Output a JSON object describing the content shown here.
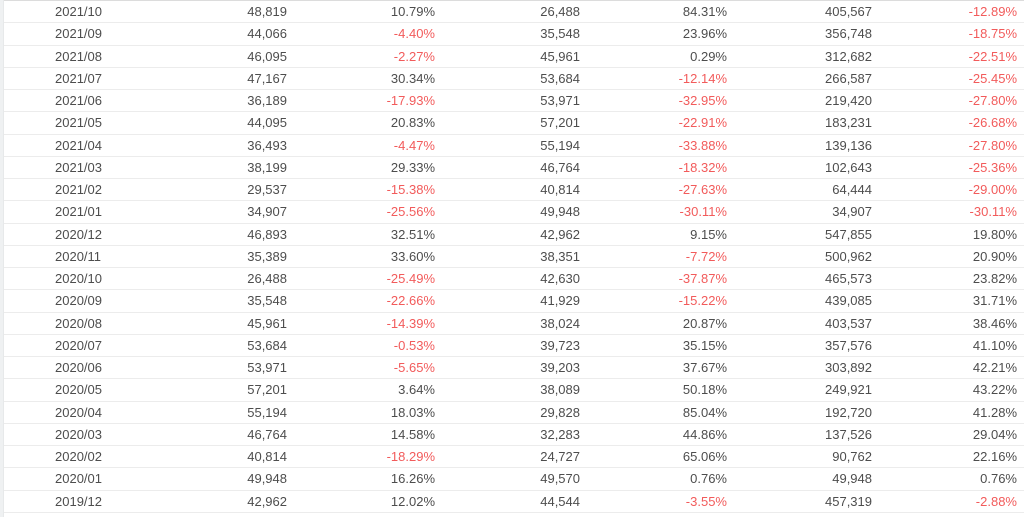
{
  "colors": {
    "background": "#ffffff",
    "text": "#4d4d4d",
    "negative": "#f25b5b",
    "row_border": "#ececec",
    "top_border": "#dcdcdc",
    "left_strip": "#eff1f2"
  },
  "chart_data": {
    "type": "table",
    "columns": [
      "month",
      "value_1",
      "pct_1",
      "value_2",
      "pct_2",
      "value_3",
      "pct_3"
    ],
    "layout": {
      "header_visible": false,
      "grid": "horizontal-row-separators",
      "negative_values_red": true
    },
    "rows": [
      [
        "2021/10",
        "48,819",
        "10.79%",
        "26,488",
        "84.31%",
        "405,567",
        "-12.89%"
      ],
      [
        "2021/09",
        "44,066",
        "-4.40%",
        "35,548",
        "23.96%",
        "356,748",
        "-18.75%"
      ],
      [
        "2021/08",
        "46,095",
        "-2.27%",
        "45,961",
        "0.29%",
        "312,682",
        "-22.51%"
      ],
      [
        "2021/07",
        "47,167",
        "30.34%",
        "53,684",
        "-12.14%",
        "266,587",
        "-25.45%"
      ],
      [
        "2021/06",
        "36,189",
        "-17.93%",
        "53,971",
        "-32.95%",
        "219,420",
        "-27.80%"
      ],
      [
        "2021/05",
        "44,095",
        "20.83%",
        "57,201",
        "-22.91%",
        "183,231",
        "-26.68%"
      ],
      [
        "2021/04",
        "36,493",
        "-4.47%",
        "55,194",
        "-33.88%",
        "139,136",
        "-27.80%"
      ],
      [
        "2021/03",
        "38,199",
        "29.33%",
        "46,764",
        "-18.32%",
        "102,643",
        "-25.36%"
      ],
      [
        "2021/02",
        "29,537",
        "-15.38%",
        "40,814",
        "-27.63%",
        "64,444",
        "-29.00%"
      ],
      [
        "2021/01",
        "34,907",
        "-25.56%",
        "49,948",
        "-30.11%",
        "34,907",
        "-30.11%"
      ],
      [
        "2020/12",
        "46,893",
        "32.51%",
        "42,962",
        "9.15%",
        "547,855",
        "19.80%"
      ],
      [
        "2020/11",
        "35,389",
        "33.60%",
        "38,351",
        "-7.72%",
        "500,962",
        "20.90%"
      ],
      [
        "2020/10",
        "26,488",
        "-25.49%",
        "42,630",
        "-37.87%",
        "465,573",
        "23.82%"
      ],
      [
        "2020/09",
        "35,548",
        "-22.66%",
        "41,929",
        "-15.22%",
        "439,085",
        "31.71%"
      ],
      [
        "2020/08",
        "45,961",
        "-14.39%",
        "38,024",
        "20.87%",
        "403,537",
        "38.46%"
      ],
      [
        "2020/07",
        "53,684",
        "-0.53%",
        "39,723",
        "35.15%",
        "357,576",
        "41.10%"
      ],
      [
        "2020/06",
        "53,971",
        "-5.65%",
        "39,203",
        "37.67%",
        "303,892",
        "42.21%"
      ],
      [
        "2020/05",
        "57,201",
        "3.64%",
        "38,089",
        "50.18%",
        "249,921",
        "43.22%"
      ],
      [
        "2020/04",
        "55,194",
        "18.03%",
        "29,828",
        "85.04%",
        "192,720",
        "41.28%"
      ],
      [
        "2020/03",
        "46,764",
        "14.58%",
        "32,283",
        "44.86%",
        "137,526",
        "29.04%"
      ],
      [
        "2020/02",
        "40,814",
        "-18.29%",
        "24,727",
        "65.06%",
        "90,762",
        "22.16%"
      ],
      [
        "2020/01",
        "49,948",
        "16.26%",
        "49,570",
        "0.76%",
        "49,948",
        "0.76%"
      ],
      [
        "2019/12",
        "42,962",
        "12.02%",
        "44,544",
        "-3.55%",
        "457,319",
        "-2.88%"
      ]
    ]
  }
}
